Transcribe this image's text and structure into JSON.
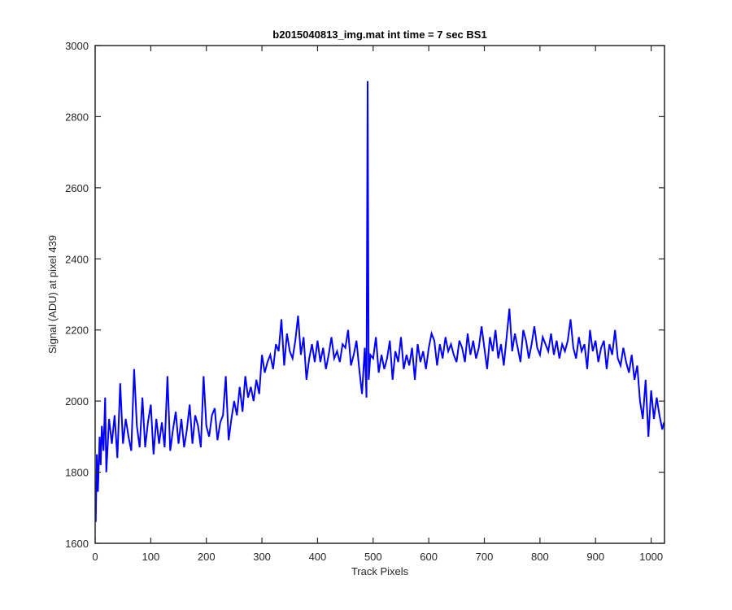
{
  "chart_data": {
    "type": "line",
    "title": "b2015040813_img.mat int time = 7 sec   BS1",
    "xlabel": "Track Pixels",
    "ylabel": "Signal (ADU) at pixel 439",
    "xlim": [
      0,
      1024
    ],
    "ylim": [
      1600,
      3000
    ],
    "xticks": [
      0,
      100,
      200,
      300,
      400,
      500,
      600,
      700,
      800,
      900,
      1000
    ],
    "yticks": [
      1600,
      1800,
      2000,
      2200,
      2400,
      2600,
      2800,
      3000
    ],
    "grid": false,
    "legend": "none",
    "series": [
      {
        "color": "#0000ff",
        "x": [
          1,
          3,
          5,
          8,
          10,
          12,
          15,
          18,
          20,
          25,
          30,
          35,
          40,
          45,
          50,
          55,
          60,
          65,
          70,
          75,
          80,
          85,
          90,
          95,
          100,
          105,
          110,
          115,
          120,
          125,
          130,
          135,
          140,
          145,
          150,
          155,
          160,
          165,
          170,
          175,
          180,
          185,
          190,
          195,
          200,
          205,
          210,
          215,
          220,
          225,
          230,
          235,
          240,
          245,
          250,
          255,
          260,
          265,
          270,
          275,
          280,
          285,
          290,
          295,
          300,
          305,
          310,
          315,
          320,
          325,
          330,
          335,
          340,
          345,
          350,
          355,
          360,
          365,
          370,
          375,
          380,
          385,
          390,
          395,
          400,
          405,
          410,
          415,
          420,
          425,
          430,
          435,
          440,
          445,
          450,
          455,
          460,
          465,
          470,
          475,
          480,
          485,
          488,
          490,
          492,
          495,
          500,
          505,
          510,
          515,
          520,
          525,
          530,
          535,
          540,
          545,
          550,
          555,
          560,
          565,
          570,
          575,
          580,
          585,
          590,
          595,
          600,
          605,
          610,
          615,
          620,
          625,
          630,
          635,
          640,
          645,
          650,
          655,
          660,
          665,
          670,
          675,
          680,
          685,
          690,
          695,
          700,
          705,
          710,
          715,
          720,
          725,
          730,
          735,
          740,
          745,
          750,
          755,
          760,
          765,
          770,
          775,
          780,
          785,
          790,
          795,
          800,
          805,
          810,
          815,
          820,
          825,
          830,
          835,
          840,
          845,
          850,
          855,
          860,
          865,
          870,
          875,
          880,
          885,
          890,
          895,
          900,
          905,
          910,
          915,
          920,
          925,
          930,
          935,
          940,
          945,
          950,
          955,
          960,
          965,
          970,
          975,
          980,
          985,
          990,
          995,
          1000,
          1005,
          1010,
          1015,
          1020,
          1023
        ],
        "y": [
          1660,
          1850,
          1745,
          1900,
          1820,
          1930,
          1860,
          2010,
          1800,
          1950,
          1880,
          1960,
          1840,
          2050,
          1880,
          1950,
          1900,
          1860,
          2090,
          1930,
          1870,
          2010,
          1870,
          1940,
          1990,
          1850,
          1950,
          1880,
          1940,
          1870,
          2070,
          1860,
          1920,
          1970,
          1880,
          1950,
          1870,
          1920,
          1990,
          1880,
          1960,
          1930,
          1870,
          2070,
          1930,
          1900,
          1960,
          1980,
          1890,
          1940,
          1960,
          2070,
          1890,
          1950,
          2000,
          1960,
          2040,
          1970,
          2070,
          2010,
          2040,
          2000,
          2060,
          2020,
          2130,
          2080,
          2110,
          2130,
          2090,
          2160,
          2140,
          2230,
          2100,
          2190,
          2140,
          2120,
          2170,
          2240,
          2130,
          2180,
          2060,
          2120,
          2160,
          2110,
          2170,
          2110,
          2150,
          2090,
          2130,
          2180,
          2120,
          2140,
          2110,
          2160,
          2150,
          2200,
          2100,
          2130,
          2170,
          2090,
          2020,
          2150,
          2010,
          2900,
          2060,
          2130,
          2120,
          2180,
          2080,
          2130,
          2090,
          2120,
          2170,
          2060,
          2140,
          2110,
          2180,
          2090,
          2130,
          2100,
          2150,
          2060,
          2160,
          2110,
          2140,
          2090,
          2150,
          2190,
          2170,
          2100,
          2160,
          2120,
          2180,
          2140,
          2160,
          2130,
          2110,
          2170,
          2150,
          2110,
          2190,
          2130,
          2170,
          2120,
          2150,
          2210,
          2150,
          2090,
          2180,
          2140,
          2200,
          2120,
          2160,
          2100,
          2180,
          2260,
          2140,
          2190,
          2150,
          2110,
          2200,
          2170,
          2120,
          2160,
          2210,
          2150,
          2130,
          2180,
          2160,
          2140,
          2190,
          2130,
          2170,
          2120,
          2160,
          2140,
          2170,
          2230,
          2150,
          2120,
          2180,
          2140,
          2160,
          2090,
          2200,
          2140,
          2170,
          2110,
          2150,
          2170,
          2090,
          2160,
          2130,
          2200,
          2120,
          2100,
          2150,
          2110,
          2080,
          2130,
          2060,
          2100,
          2000,
          1950,
          2060,
          1900,
          2030,
          1950,
          2010,
          1960,
          1920,
          1940
        ]
      }
    ]
  }
}
